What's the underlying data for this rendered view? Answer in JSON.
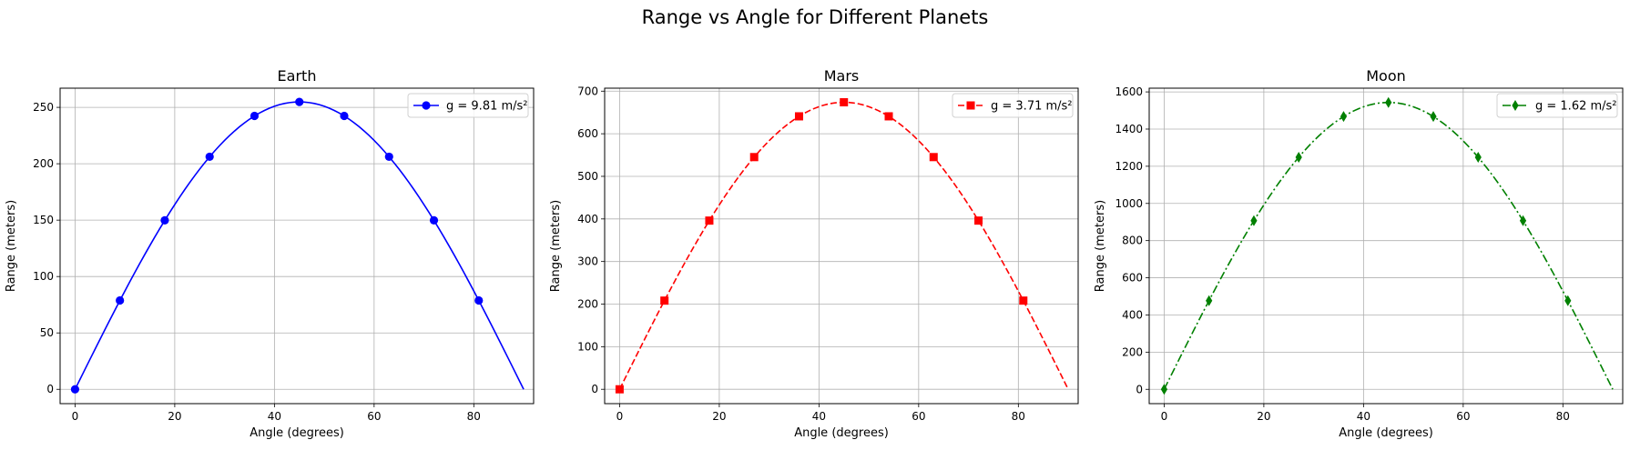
{
  "figure": {
    "suptitle": "Range vs Angle for Different Planets"
  },
  "chart_data": [
    {
      "type": "line",
      "title": "Earth",
      "xlabel": "Angle (degrees)",
      "ylabel": "Range (meters)",
      "xlim": [
        -3,
        92
      ],
      "ylim": [
        -12.7,
        267
      ],
      "xticks": [
        0,
        20,
        40,
        60,
        80
      ],
      "yticks": [
        0,
        50,
        100,
        150,
        200,
        250
      ],
      "grid": true,
      "legend_position": "top-right",
      "series": [
        {
          "name": "g = 9.81 m/s²",
          "color": "#0000ff",
          "line_style": "solid",
          "marker": "circle",
          "curve_peak": 254.84,
          "curve_x": [
            0,
            90
          ],
          "markers_x": [
            0,
            9,
            18,
            27,
            36,
            45,
            54,
            63,
            72,
            81
          ],
          "markers_y": [
            0,
            78.8,
            149.8,
            206.2,
            242.4,
            254.8,
            242.4,
            206.2,
            149.8,
            78.8
          ]
        }
      ]
    },
    {
      "type": "line",
      "title": "Mars",
      "xlabel": "Angle (degrees)",
      "ylabel": "Range (meters)",
      "xlim": [
        -3,
        92
      ],
      "ylim": [
        -33.7,
        707
      ],
      "xticks": [
        0,
        20,
        40,
        60,
        80
      ],
      "yticks": [
        0,
        100,
        200,
        300,
        400,
        500,
        600,
        700
      ],
      "grid": true,
      "legend_position": "top-right",
      "series": [
        {
          "name": "g = 3.71 m/s²",
          "color": "#ff0000",
          "line_style": "dashed",
          "marker": "square",
          "curve_peak": 673.85,
          "curve_x": [
            0,
            90
          ],
          "markers_x": [
            0,
            9,
            18,
            27,
            36,
            45,
            54,
            63,
            72,
            81
          ],
          "markers_y": [
            0,
            208.2,
            396.1,
            545.2,
            640.9,
            673.9,
            640.9,
            545.2,
            396.1,
            208.2
          ]
        }
      ]
    },
    {
      "type": "line",
      "title": "Moon",
      "xlabel": "Angle (degrees)",
      "ylabel": "Range (meters)",
      "xlim": [
        -3,
        92
      ],
      "ylim": [
        -77,
        1620
      ],
      "xticks": [
        0,
        20,
        40,
        60,
        80
      ],
      "yticks": [
        0,
        200,
        400,
        600,
        800,
        1000,
        1200,
        1400,
        1600
      ],
      "grid": true,
      "legend_position": "top-right",
      "series": [
        {
          "name": "g = 1.62 m/s²",
          "color": "#008000",
          "line_style": "dashdot",
          "marker": "thin-diamond",
          "curve_peak": 1543.21,
          "curve_x": [
            0,
            90
          ],
          "markers_x": [
            0,
            9,
            18,
            27,
            36,
            45,
            54,
            63,
            72,
            81
          ],
          "markers_y": [
            0,
            476.9,
            907.1,
            1248.5,
            1467.7,
            1543.2,
            1467.7,
            1248.5,
            907.1,
            476.9
          ]
        }
      ]
    }
  ]
}
